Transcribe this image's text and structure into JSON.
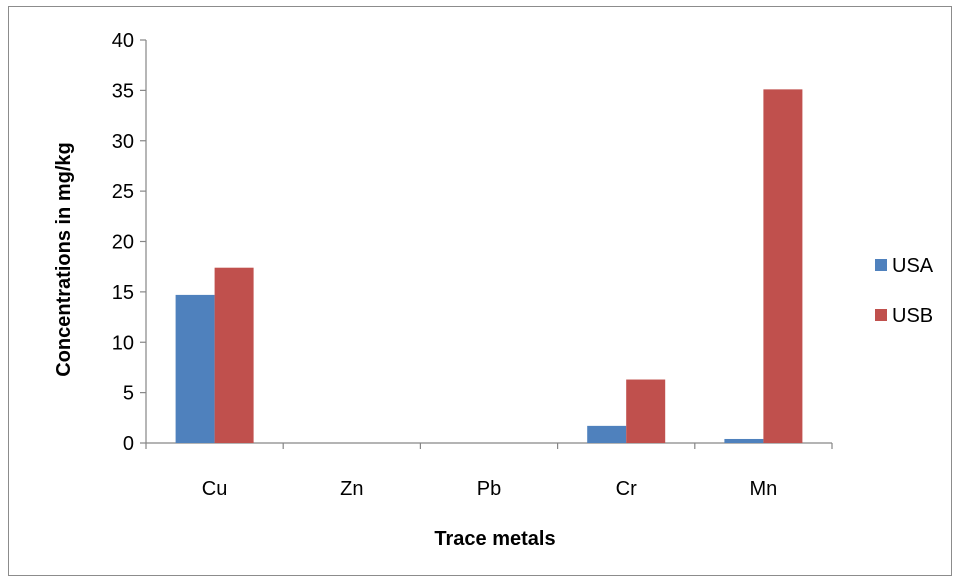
{
  "chart_data": {
    "type": "bar",
    "categories": [
      "Cu",
      "Zn",
      "Pb",
      "Cr",
      "Mn"
    ],
    "series": [
      {
        "name": "USA",
        "values": [
          14.7,
          0,
          0,
          1.7,
          0.4
        ],
        "color": "#4f81bd"
      },
      {
        "name": "USB",
        "values": [
          17.4,
          0,
          0,
          6.3,
          35.1
        ],
        "color": "#c0504d"
      }
    ],
    "xlabel": "Trace metals",
    "ylabel": "Concentrations in mg/kg",
    "ylim": [
      0,
      40
    ],
    "yticks": [
      0,
      5,
      10,
      15,
      20,
      25,
      30,
      35,
      40
    ],
    "grid": false,
    "legend_position": "right"
  }
}
